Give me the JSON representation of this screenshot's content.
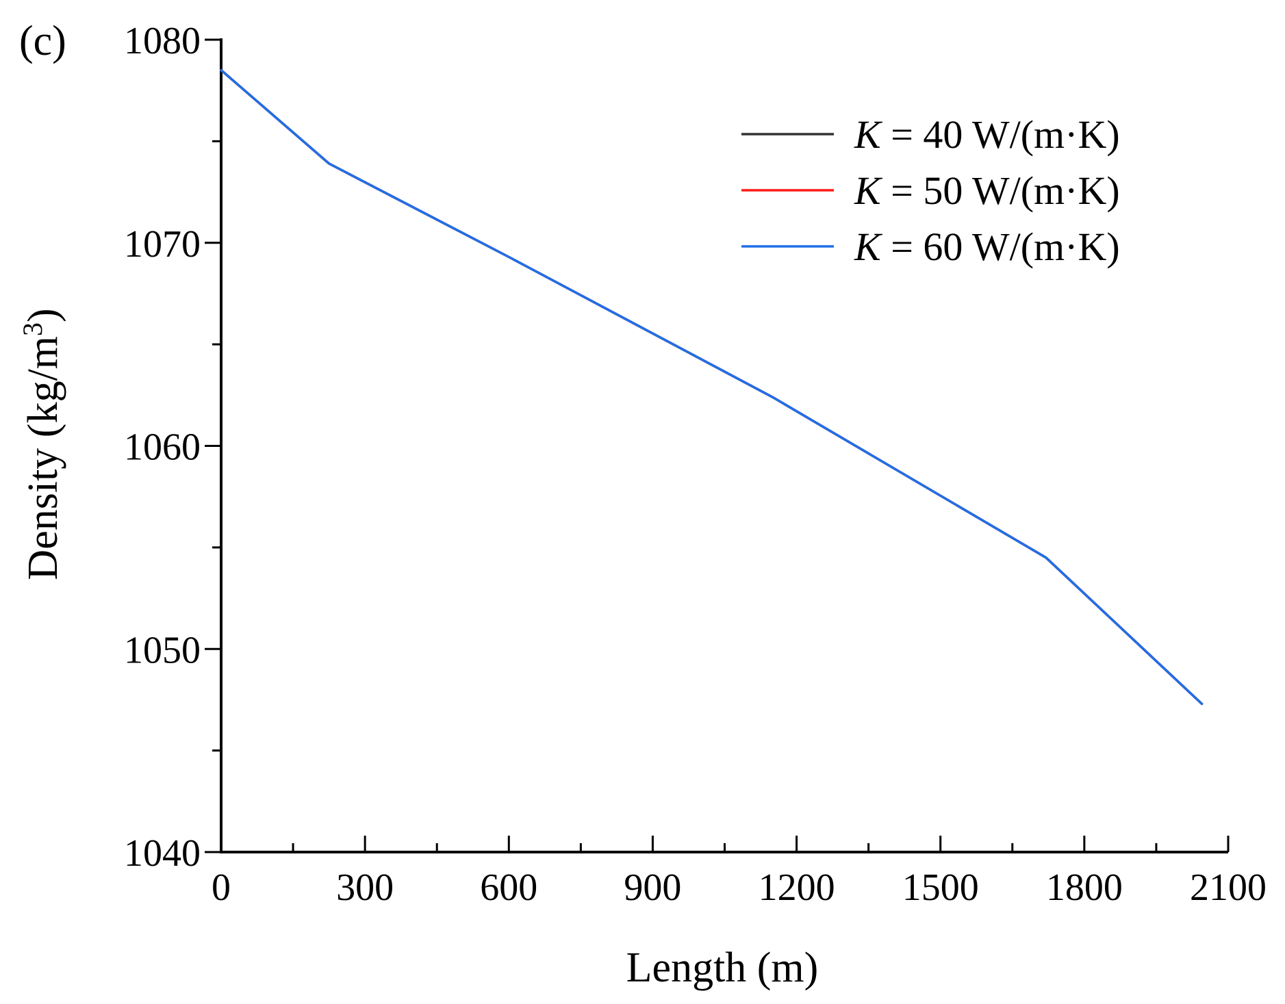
{
  "panel_label": "(c)",
  "chart_data": {
    "type": "line",
    "title": "",
    "xlabel": "Length (m)",
    "ylabel_main": "Density (kg/m",
    "ylabel_sup": "3",
    "ylabel_close": ")",
    "xlim": [
      0,
      2100
    ],
    "ylim": [
      1040,
      1080
    ],
    "x_major_ticks": [
      0,
      300,
      600,
      900,
      1200,
      1500,
      1800,
      2100
    ],
    "x_minor_ticks": [
      150,
      450,
      750,
      1050,
      1350,
      1650,
      1950
    ],
    "y_major_ticks": [
      1040,
      1050,
      1060,
      1070,
      1080
    ],
    "y_minor_ticks": [
      1045,
      1055,
      1065,
      1075
    ],
    "grid": false,
    "legend_position": "top-right",
    "series": [
      {
        "name": "K = 40 W/(m·K)",
        "legend_var": "K",
        "legend_rest": " = 40 W/(m·K)",
        "color": "#333333",
        "x": [
          0,
          225,
          600,
          1150,
          1720,
          2045
        ],
        "y": [
          1078.5,
          1073.9,
          1069.3,
          1062.4,
          1054.5,
          1047.3
        ]
      },
      {
        "name": "K = 50 W/(m·K)",
        "legend_var": "K",
        "legend_rest": " = 50 W/(m·K)",
        "color": "#ff1a1a",
        "x": [
          0,
          225,
          600,
          1150,
          1720,
          2045
        ],
        "y": [
          1078.5,
          1073.9,
          1069.3,
          1062.4,
          1054.5,
          1047.3
        ]
      },
      {
        "name": "K = 60 W/(m·K)",
        "legend_var": "K",
        "legend_rest": " = 60 W/(m·K)",
        "color": "#1f6fe8",
        "x": [
          0,
          225,
          600,
          1150,
          1720,
          2045
        ],
        "y": [
          1078.5,
          1073.9,
          1069.3,
          1062.4,
          1054.5,
          1047.3
        ]
      }
    ]
  }
}
